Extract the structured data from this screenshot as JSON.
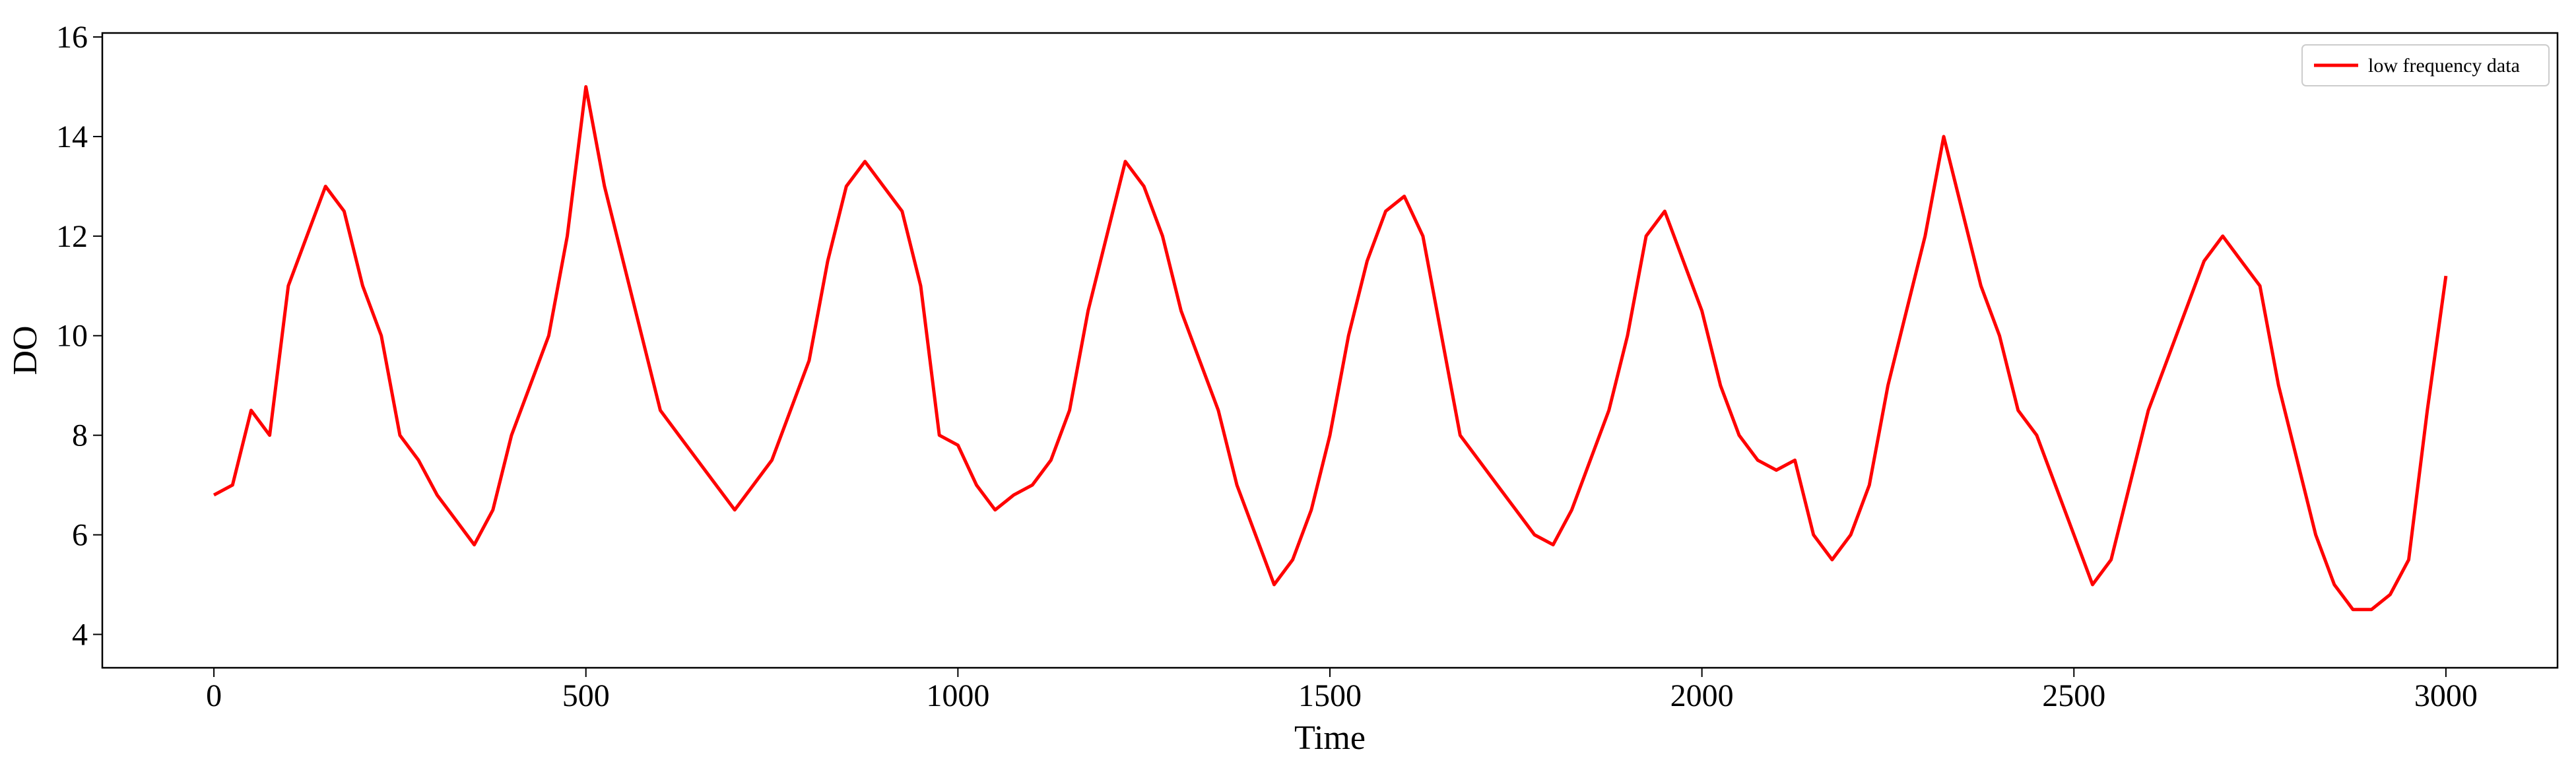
{
  "chart_data": {
    "type": "line",
    "x_label": "Time",
    "y_label": "DO",
    "x": [
      0,
      25,
      50,
      75,
      100,
      125,
      150,
      175,
      200,
      225,
      250,
      275,
      300,
      325,
      350,
      375,
      400,
      425,
      450,
      475,
      500,
      525,
      550,
      575,
      600,
      625,
      650,
      675,
      700,
      725,
      750,
      775,
      800,
      825,
      850,
      875,
      900,
      925,
      950,
      975,
      1000,
      1025,
      1050,
      1075,
      1100,
      1125,
      1150,
      1175,
      1200,
      1225,
      1250,
      1275,
      1300,
      1325,
      1350,
      1375,
      1400,
      1425,
      1450,
      1475,
      1500,
      1525,
      1550,
      1575,
      1600,
      1625,
      1650,
      1675,
      1700,
      1725,
      1750,
      1775,
      1800,
      1825,
      1850,
      1875,
      1900,
      1925,
      1950,
      1975,
      2000,
      2025,
      2050,
      2075,
      2100,
      2125,
      2150,
      2175,
      2200,
      2225,
      2250,
      2275,
      2300,
      2325,
      2350,
      2375,
      2400,
      2425,
      2450,
      2475,
      2500,
      2525,
      2550,
      2575,
      2600,
      2625,
      2650,
      2675,
      2700,
      2725,
      2750,
      2775,
      2800,
      2825,
      2850,
      2875,
      2900,
      2925,
      2950,
      2975,
      3000
    ],
    "series": [
      {
        "name": "low frequency data",
        "color": "#ff0000",
        "values": [
          6.8,
          7.0,
          8.5,
          8.0,
          11.0,
          12.0,
          13.0,
          12.5,
          11.0,
          10.0,
          8.0,
          7.5,
          6.8,
          6.3,
          5.8,
          6.5,
          8.0,
          9.0,
          10.0,
          12.0,
          15.0,
          13.0,
          11.5,
          10.0,
          8.5,
          8.0,
          7.5,
          7.0,
          6.5,
          7.0,
          7.5,
          8.5,
          9.5,
          11.5,
          13.0,
          13.5,
          13.0,
          12.5,
          11.0,
          8.0,
          7.8,
          7.0,
          6.5,
          6.8,
          7.0,
          7.5,
          8.5,
          10.5,
          12.0,
          13.5,
          13.0,
          12.0,
          10.5,
          9.5,
          8.5,
          7.0,
          6.0,
          5.0,
          5.5,
          6.5,
          8.0,
          10.0,
          11.5,
          12.5,
          12.8,
          12.0,
          10.0,
          8.0,
          7.5,
          7.0,
          6.5,
          6.0,
          5.8,
          6.5,
          7.5,
          8.5,
          10.0,
          12.0,
          12.5,
          11.5,
          10.5,
          9.0,
          8.0,
          7.5,
          7.3,
          7.5,
          6.0,
          5.5,
          6.0,
          7.0,
          9.0,
          10.5,
          12.0,
          14.0,
          12.5,
          11.0,
          10.0,
          8.5,
          8.0,
          7.0,
          6.0,
          5.0,
          5.5,
          7.0,
          8.5,
          9.5,
          10.5,
          11.5,
          12.0,
          11.5,
          11.0,
          9.0,
          7.5,
          6.0,
          5.0,
          4.5,
          4.5,
          4.8,
          5.5,
          8.5,
          11.2
        ]
      }
    ],
    "xlim": [
      -150,
      3150
    ],
    "ylim": [
      3.33,
      16.08
    ],
    "xticks": [
      0,
      500,
      1000,
      1500,
      2000,
      2500,
      3000
    ],
    "yticks": [
      4,
      6,
      8,
      10,
      12,
      14,
      16
    ],
    "legend": "upper right"
  }
}
